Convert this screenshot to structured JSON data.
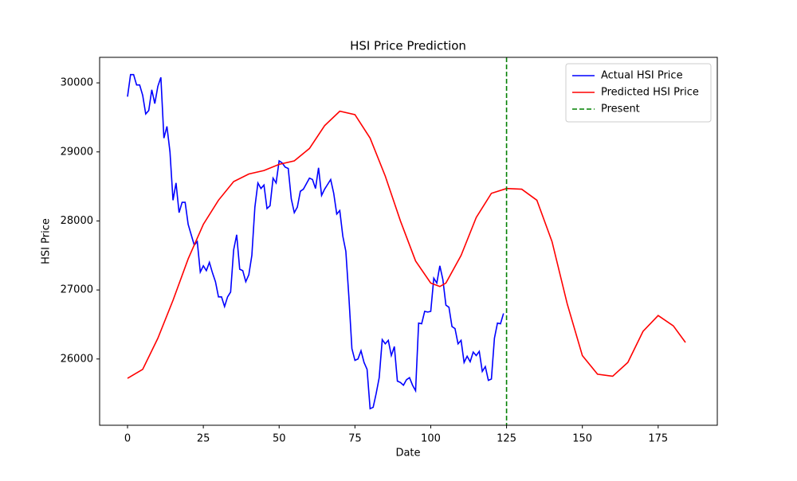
{
  "chart_data": {
    "type": "line",
    "title": "HSI Price Prediction",
    "x_label": "Date",
    "y_label": "HSI Price",
    "xlim": [
      -9.2,
      194.5
    ],
    "ylim": [
      25040,
      30370
    ],
    "xticks": [
      0,
      25,
      50,
      75,
      100,
      125,
      150,
      175
    ],
    "yticks": [
      26000,
      27000,
      28000,
      29000,
      30000
    ],
    "grid": false,
    "legend": "upper-right",
    "series": [
      {
        "name": "Actual HSI Price",
        "color": "#0000ff",
        "x": [
          0,
          1,
          2,
          3,
          4,
          5,
          6,
          7,
          8,
          9,
          10,
          11,
          12,
          13,
          14,
          15,
          16,
          17,
          18,
          19,
          20,
          21,
          22,
          23,
          24,
          25,
          26,
          27,
          28,
          29,
          30,
          31,
          32,
          33,
          34,
          35,
          36,
          37,
          38,
          39,
          40,
          41,
          42,
          43,
          44,
          45,
          46,
          47,
          48,
          49,
          50,
          51,
          52,
          53,
          54,
          55,
          56,
          57,
          58,
          59,
          60,
          61,
          62,
          63,
          64,
          65,
          66,
          67,
          68,
          69,
          70,
          71,
          72,
          73,
          74,
          75,
          76,
          77,
          78,
          79,
          80,
          81,
          82,
          83,
          84,
          85,
          86,
          87,
          88,
          89,
          90,
          91,
          92,
          93,
          94,
          95,
          96,
          97,
          98,
          99,
          100,
          101,
          102,
          103,
          104,
          105,
          106,
          107,
          108,
          109,
          110,
          111,
          112,
          113,
          114,
          115,
          116,
          117,
          118,
          119,
          120,
          121,
          122,
          123,
          124
        ],
        "values": [
          29800,
          30120,
          30120,
          29970,
          29970,
          29820,
          29550,
          29600,
          29900,
          29700,
          29950,
          30080,
          29200,
          29370,
          29000,
          28300,
          28550,
          28120,
          28270,
          28270,
          27950,
          27800,
          27650,
          27700,
          27260,
          27350,
          27280,
          27400,
          27250,
          27120,
          26900,
          26900,
          26760,
          26900,
          26970,
          27580,
          27800,
          27300,
          27280,
          27120,
          27220,
          27500,
          28200,
          28550,
          28470,
          28520,
          28180,
          28220,
          28620,
          28550,
          28870,
          28840,
          28780,
          28760,
          28320,
          28120,
          28200,
          28430,
          28460,
          28540,
          28620,
          28600,
          28470,
          28770,
          28370,
          28460,
          28530,
          28600,
          28400,
          28100,
          28150,
          27780,
          27560,
          26900,
          26150,
          25980,
          26000,
          26120,
          25950,
          25850,
          25280,
          25300,
          25500,
          25730,
          26280,
          26220,
          26270,
          26050,
          26180,
          25680,
          25660,
          25620,
          25700,
          25730,
          25620,
          25540,
          26520,
          26510,
          26690,
          26680,
          26690,
          27170,
          27100,
          27350,
          27150,
          26780,
          26750,
          26470,
          26440,
          26220,
          26270,
          25950,
          26040,
          25960,
          26100,
          26050,
          26110,
          25820,
          25890,
          25690,
          25710,
          26300,
          26520,
          26510,
          26660
        ]
      },
      {
        "name": "Predicted HSI Price",
        "color": "#ff0000",
        "x": [
          0,
          5,
          10,
          15,
          20,
          25,
          30,
          35,
          40,
          45,
          50,
          55,
          60,
          65,
          70,
          75,
          80,
          85,
          90,
          95,
          100,
          103,
          105,
          110,
          115,
          120,
          125,
          130,
          135,
          140,
          145,
          150,
          155,
          160,
          165,
          170,
          175,
          180,
          184
        ],
        "values": [
          25720,
          25850,
          26300,
          26850,
          27450,
          27950,
          28300,
          28570,
          28680,
          28730,
          28820,
          28870,
          29050,
          29380,
          29590,
          29540,
          29200,
          28650,
          28000,
          27420,
          27100,
          27050,
          27100,
          27500,
          28050,
          28400,
          28470,
          28460,
          28300,
          27700,
          26800,
          26050,
          25780,
          25750,
          25950,
          26400,
          26630,
          26480,
          26240
        ]
      }
    ],
    "vline": {
      "name": "Present",
      "color": "#008000",
      "x": 125
    }
  }
}
